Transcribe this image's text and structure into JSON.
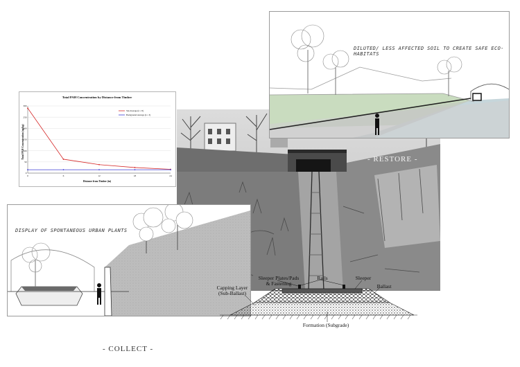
{
  "sections": {
    "restore": {
      "caption": "DILUTED/ LESS AFFECTED SOIL TO CREATE SAFE ECO-HABITATS",
      "label": "- RESTORE -"
    },
    "collect": {
      "caption": "DISPLAY OF SPONTANEOUS URBAN PLANTS",
      "label": "- COLLECT -"
    }
  },
  "track_diagram": {
    "sleeper_plates": "Sleeper Plates/Pads",
    "fastening": "& Fastening",
    "rails": "Rails",
    "sleeper": "Sleeper",
    "ballast": "Ballast",
    "capping_layer": "Capping Layer",
    "sub_ballast": "(Sub-Ballast)",
    "formation": "Formation (Subgrade)"
  },
  "colors": {
    "series_red": "#d62a2a",
    "series_blue": "#3b3bd6",
    "green_strip": "#c9dcbf",
    "water": "#c6d6db"
  },
  "chart_data": {
    "type": "line",
    "title": "Total PAH Concentration by Distance from Timber",
    "xlabel": "Distance from Timber (in)",
    "ylabel": "Total PAH Concentration (ug/kg)",
    "x": [
      0,
      6,
      12,
      18,
      24
    ],
    "xlim": [
      0,
      24
    ],
    "ylim": [
      0,
      300
    ],
    "yticks": [
      0,
      50,
      100,
      150,
      200,
      250,
      300
    ],
    "xticks": [
      0,
      6,
      12,
      18,
      24
    ],
    "grid": true,
    "legend": "top-right",
    "series": [
      {
        "name": "Site Average (n = 8)",
        "values": [
          290,
          62,
          38,
          25,
          17
        ],
        "color": "#d62a2a"
      },
      {
        "name": "Background Average (n = 3)",
        "values": [
          15,
          15,
          15,
          15,
          15
        ],
        "color": "#3b3bd6"
      }
    ]
  }
}
